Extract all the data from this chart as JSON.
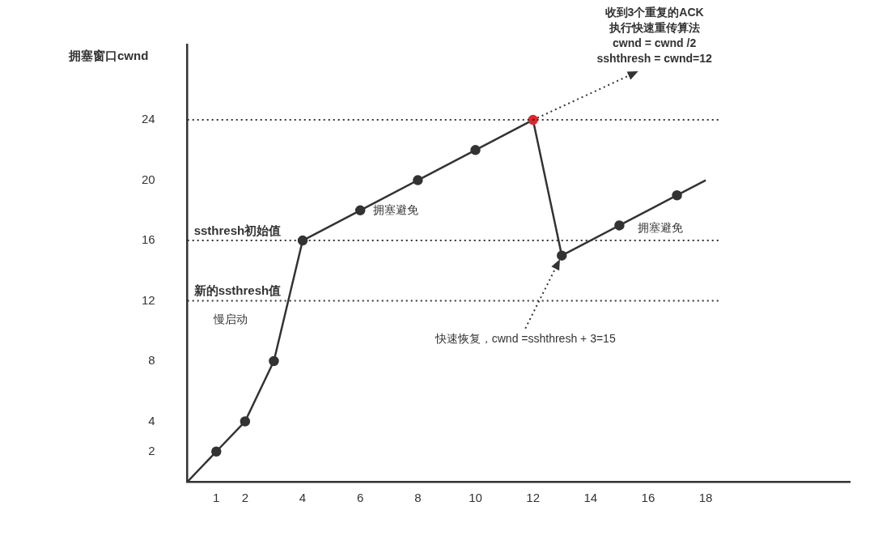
{
  "chart_data": {
    "type": "line",
    "ylabel": "拥塞窗口cwnd",
    "series": [
      {
        "color": "#333333",
        "x": [
          0,
          1,
          2,
          3,
          4,
          6,
          8,
          10,
          12,
          13,
          15,
          17,
          18
        ],
        "values": [
          0,
          2,
          4,
          8,
          16,
          18,
          20,
          22,
          24,
          15,
          17,
          19,
          20
        ],
        "colors": [
          null,
          "#333333",
          "#333333",
          "#333333",
          "#333333",
          "#333333",
          "#333333",
          "#333333",
          "#e0262b",
          "#333333",
          "#333333",
          "#333333",
          null
        ]
      }
    ],
    "xlim": [
      0,
      23
    ],
    "xticks": [
      1,
      2,
      4,
      6,
      8,
      10,
      12,
      14,
      16,
      18
    ],
    "ylim": [
      0,
      29
    ],
    "yticks": [
      2,
      4,
      8,
      12,
      16,
      20,
      24
    ],
    "grid": false,
    "legend": false,
    "marker": "circle",
    "line_style": "solid",
    "ref_lines": [
      {
        "axis": "y",
        "value": 24,
        "line_style": "dotted",
        "color": "#333333"
      },
      {
        "axis": "y",
        "value": 16,
        "label": "ssthresh初始值",
        "line_style": "dotted",
        "color": "#333333"
      },
      {
        "axis": "y",
        "value": 12,
        "label": "新的ssthresh值",
        "line_style": "dotted",
        "color": "#333333"
      }
    ],
    "annotations": [
      "慢启动",
      "拥塞避免",
      "拥塞避免",
      {
        "text": "收到3个重复的ACK\n执行快速重传算法\ncwnd = cwnd /2\nsshthresh = cwnd=12",
        "x": 12,
        "y": 24
      },
      {
        "text": "快速恢复，cwnd =sshthresh + 3=15",
        "x": 13,
        "y": 15
      }
    ]
  }
}
